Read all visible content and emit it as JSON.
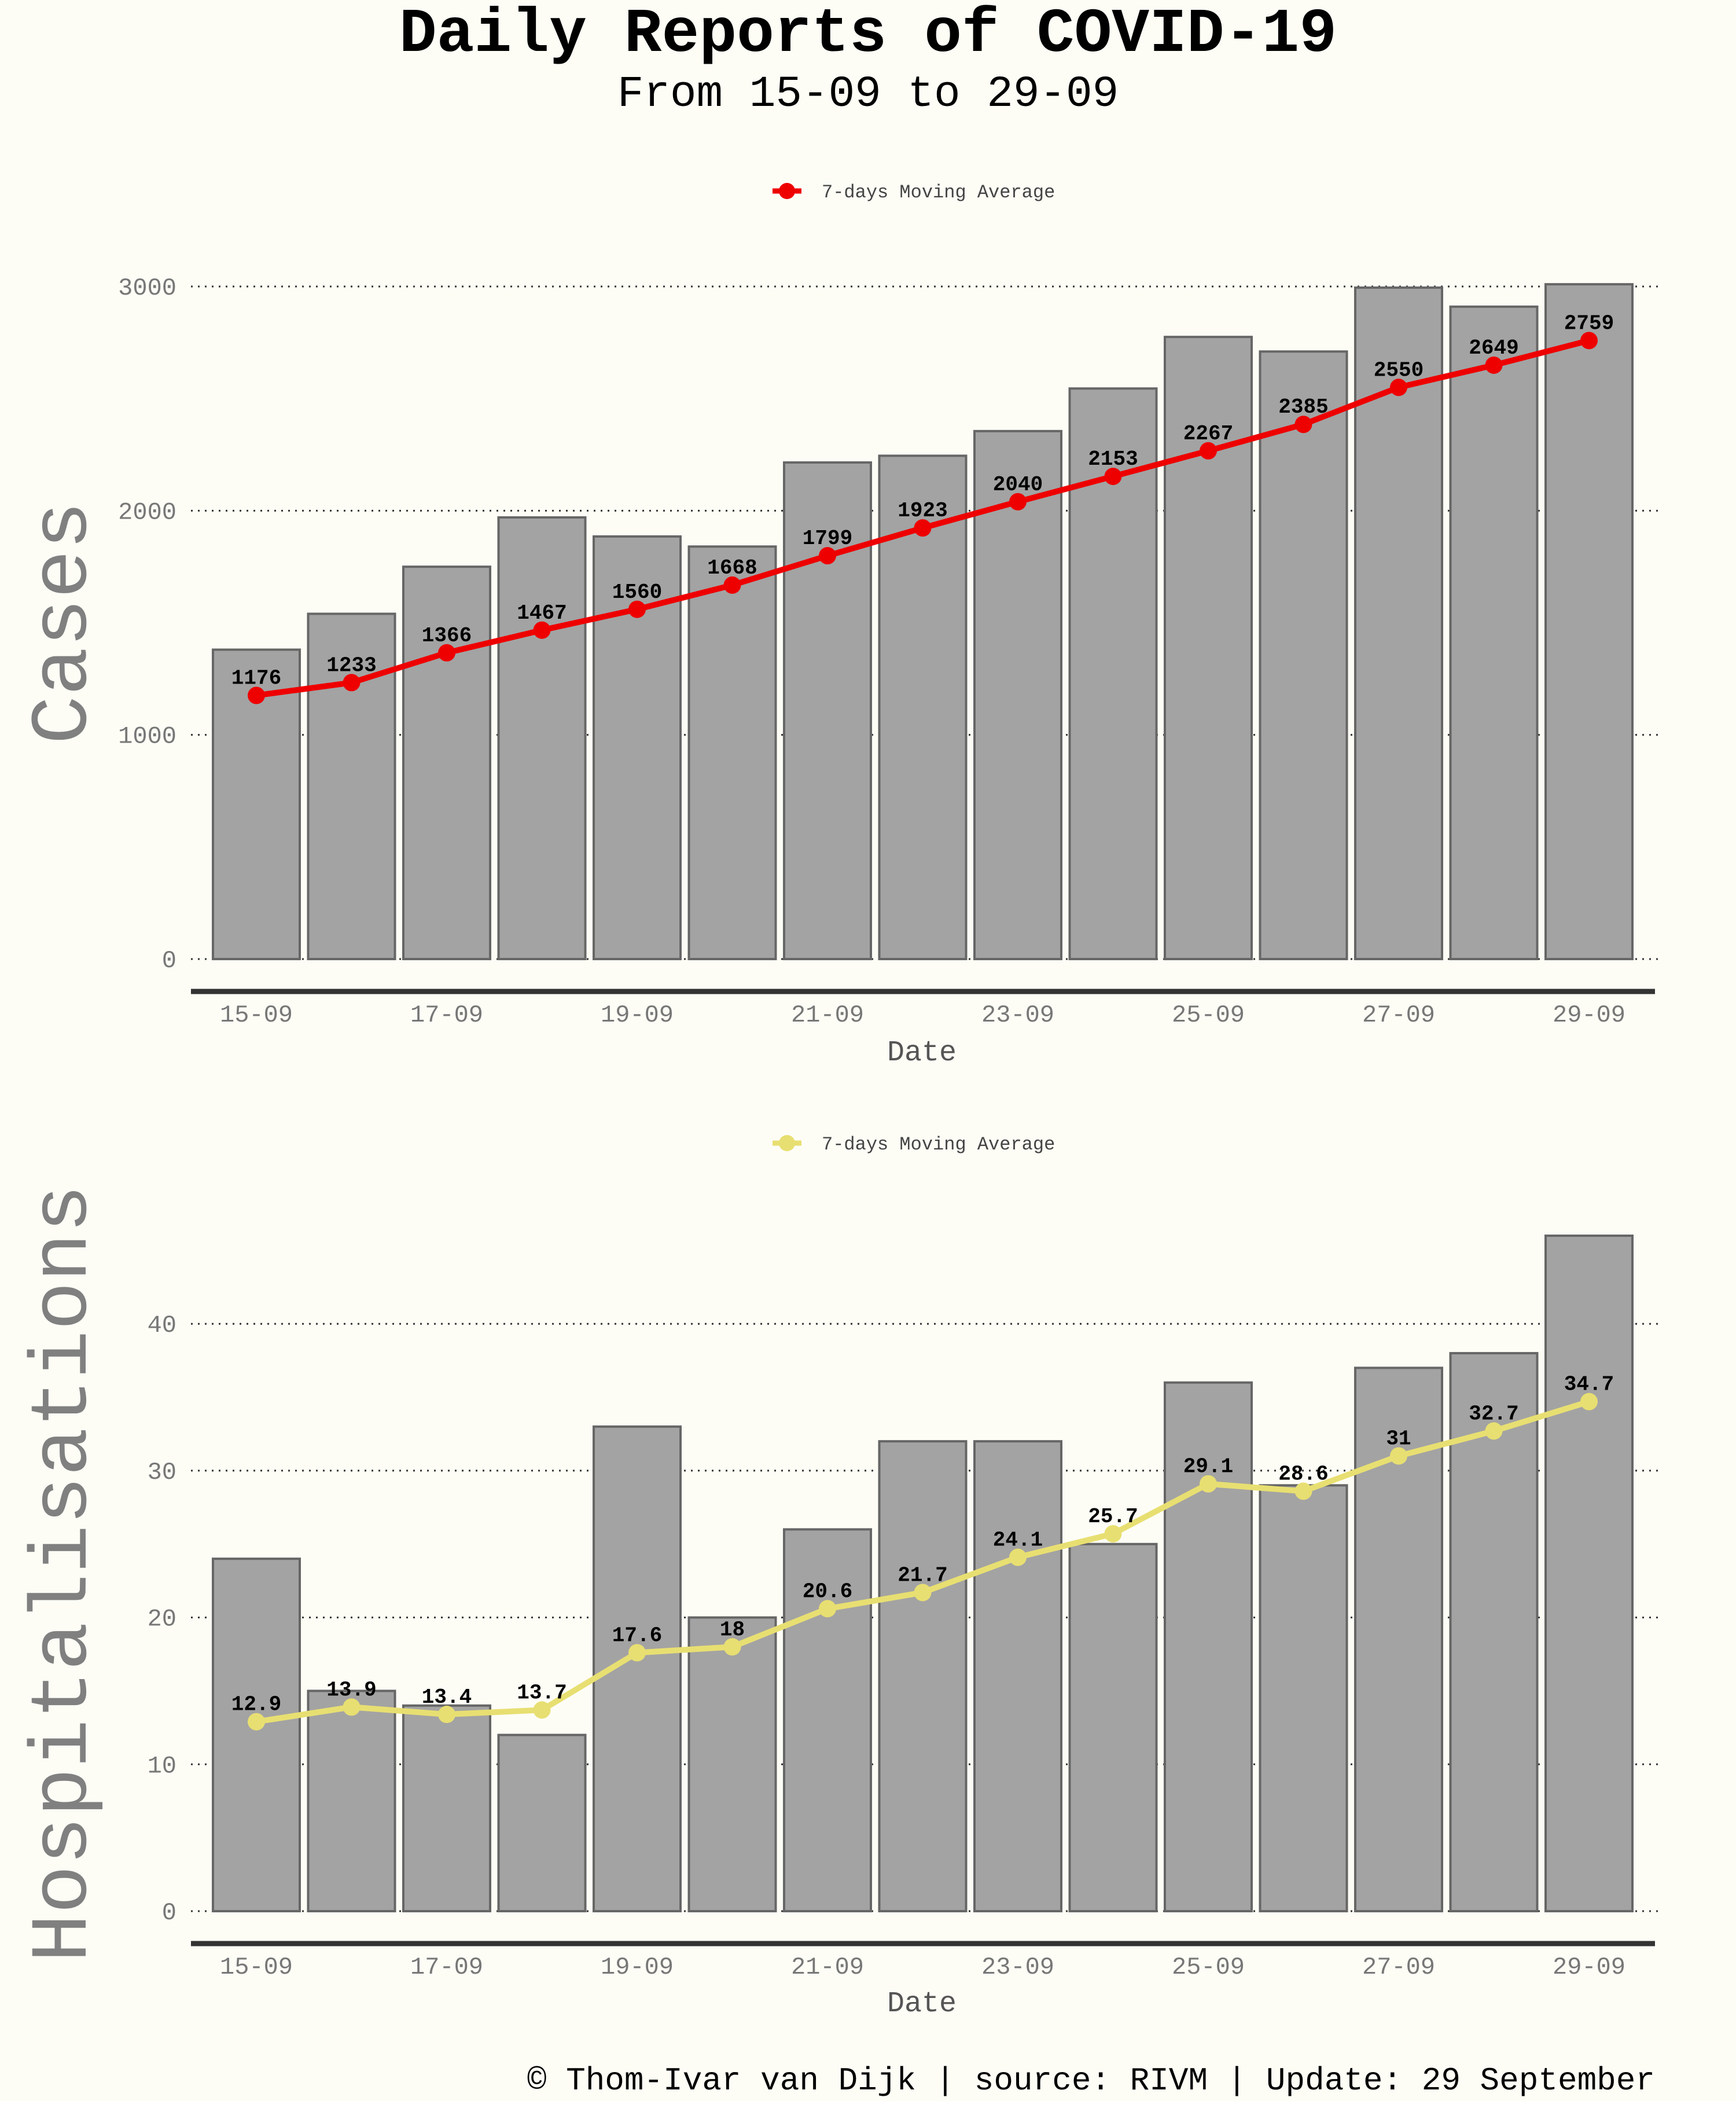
{
  "title": "Daily Reports of COVID-19",
  "subtitle": "From 15-09 to 29-09",
  "footer": "© Thom-Ivar van Dijk | source: RIVM | Update: 29 September",
  "colors": {
    "background": "#fdfdf6",
    "bar_fill": "#a3a3a3",
    "bar_stroke": "#666666",
    "cases_line": "#ee0000",
    "hosp_line": "#e8df72"
  },
  "chart_data": [
    {
      "type": "bar",
      "ylabel": "Cases",
      "xlabel": "Date",
      "categories": [
        "15-09",
        "16-09",
        "17-09",
        "18-09",
        "19-09",
        "20-09",
        "21-09",
        "22-09",
        "23-09",
        "24-09",
        "25-09",
        "26-09",
        "27-09",
        "28-09",
        "29-09"
      ],
      "x_tick_labels": [
        "15-09",
        "17-09",
        "19-09",
        "21-09",
        "23-09",
        "25-09",
        "27-09",
        "29-09"
      ],
      "ylim": [
        0,
        3000
      ],
      "y_ticks": [
        0,
        1000,
        2000,
        3000
      ],
      "grid": "dotted horizontal",
      "series": [
        {
          "name": "Cases",
          "kind": "bar",
          "values": [
            1380,
            1540,
            1750,
            1970,
            1885,
            1840,
            2215,
            2245,
            2355,
            2545,
            2775,
            2710,
            2995,
            2910,
            3010
          ]
        },
        {
          "name": "7-days Moving Average",
          "kind": "line",
          "color": "#ee0000",
          "values": [
            1176,
            1233,
            1366,
            1467,
            1560,
            1668,
            1799,
            1923,
            2040,
            2153,
            2267,
            2385,
            2550,
            2649,
            2759
          ],
          "labels": [
            "1176",
            "1233",
            "1366",
            "1467",
            "1560",
            "1668",
            "1799",
            "1923",
            "2040",
            "2153",
            "2267",
            "2385",
            "2550",
            "2649",
            "2759"
          ]
        }
      ],
      "legend": {
        "label": "7-days Moving Average",
        "position": "top-center"
      }
    },
    {
      "type": "bar",
      "ylabel": "Hospitalisations",
      "xlabel": "Date",
      "categories": [
        "15-09",
        "16-09",
        "17-09",
        "18-09",
        "19-09",
        "20-09",
        "21-09",
        "22-09",
        "23-09",
        "24-09",
        "25-09",
        "26-09",
        "27-09",
        "28-09",
        "29-09"
      ],
      "x_tick_labels": [
        "15-09",
        "17-09",
        "19-09",
        "21-09",
        "23-09",
        "25-09",
        "27-09",
        "29-09"
      ],
      "ylim": [
        0,
        46
      ],
      "y_ticks": [
        0,
        10,
        20,
        30,
        40
      ],
      "grid": "dotted horizontal",
      "series": [
        {
          "name": "Hospitalisations",
          "kind": "bar",
          "values": [
            24,
            15,
            14,
            12,
            33,
            20,
            26,
            32,
            32,
            25,
            36,
            29,
            37,
            38,
            46
          ]
        },
        {
          "name": "7-days Moving Average",
          "kind": "line",
          "color": "#e8df72",
          "values": [
            12.9,
            13.9,
            13.4,
            13.7,
            17.6,
            18,
            20.6,
            21.7,
            24.1,
            25.7,
            29.1,
            28.6,
            31,
            32.7,
            34.7
          ],
          "labels": [
            "12.9",
            "13.9",
            "13.4",
            "13.7",
            "17.6",
            "18",
            "20.6",
            "21.7",
            "24.1",
            "25.7",
            "29.1",
            "28.6",
            "31",
            "32.7",
            "34.7"
          ]
        }
      ],
      "legend": {
        "label": "7-days Moving Average",
        "position": "top-center"
      }
    }
  ]
}
